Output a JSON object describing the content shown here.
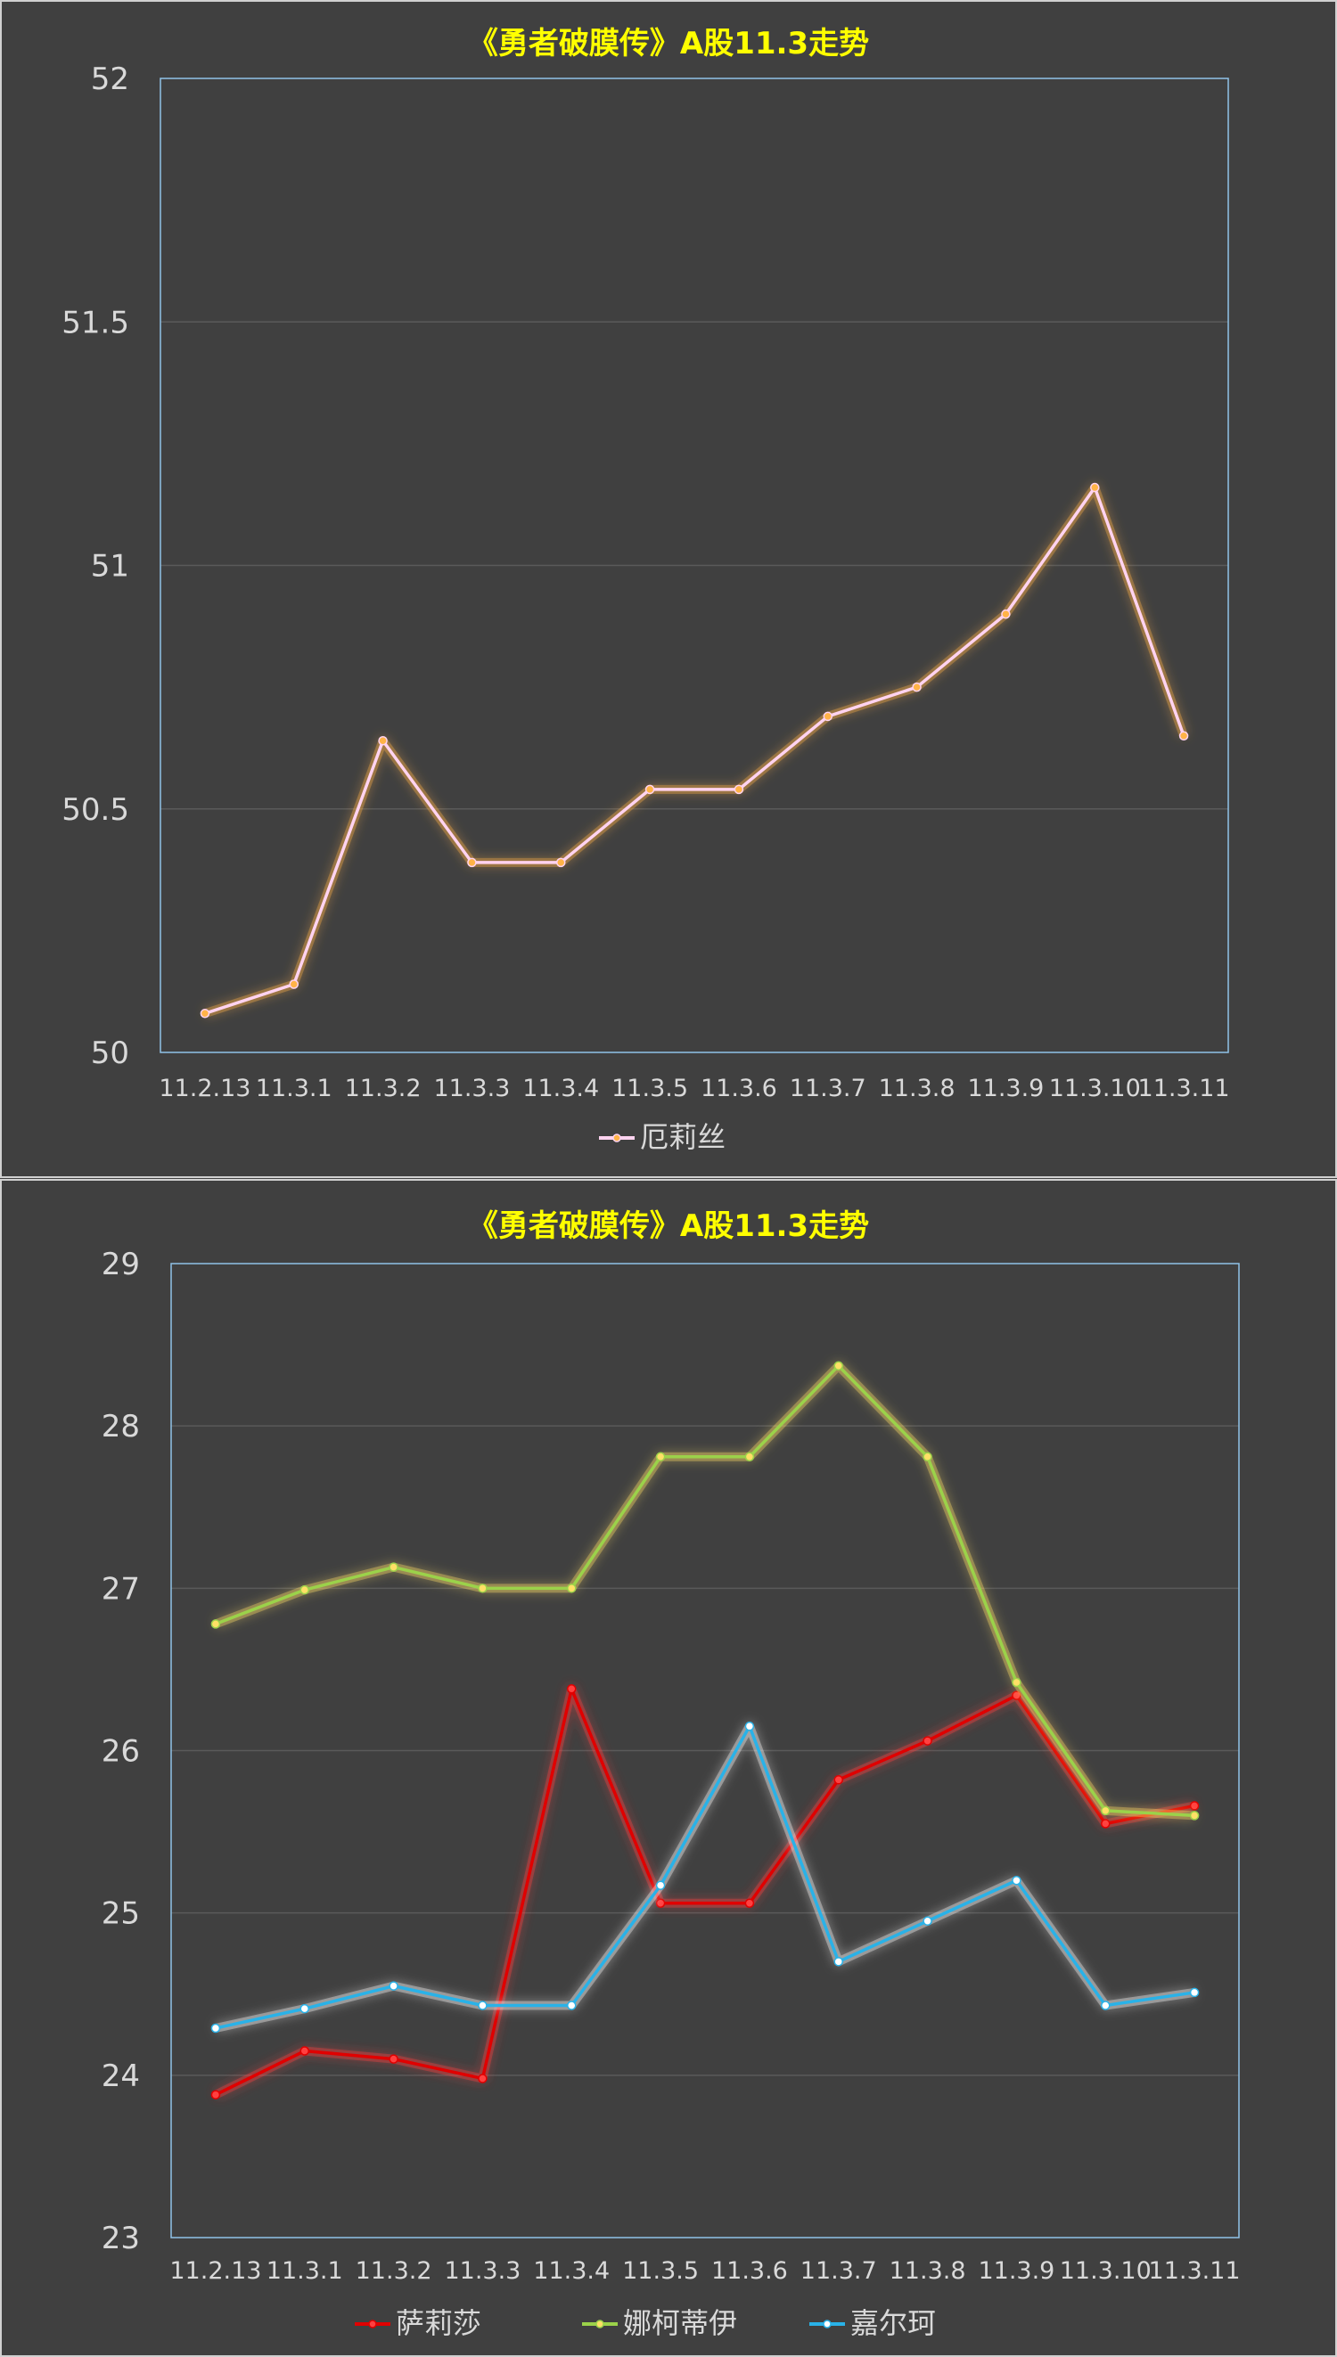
{
  "chart_data": [
    {
      "type": "line",
      "title": "《勇者破膜传》A股11.3走势",
      "categories": [
        "11.2.13",
        "11.3.1",
        "11.3.2",
        "11.3.3",
        "11.3.4",
        "11.3.5",
        "11.3.6",
        "11.3.7",
        "11.3.8",
        "11.3.9",
        "11.3.10",
        "11.3.11"
      ],
      "ylim": [
        50,
        52
      ],
      "yticks": [
        "50",
        "50.5",
        "51",
        "51.5",
        "52"
      ],
      "grid": true,
      "legend": "bottom",
      "series": [
        {
          "name": "厄莉丝",
          "color": "#ffd3f0",
          "glow": "#ffb347",
          "values": [
            50.08,
            50.14,
            50.64,
            50.39,
            50.39,
            50.54,
            50.54,
            50.69,
            50.75,
            50.9,
            51.16,
            50.65
          ]
        }
      ]
    },
    {
      "type": "line",
      "title": "《勇者破膜传》A股11.3走势",
      "categories": [
        "11.2.13",
        "11.3.1",
        "11.3.2",
        "11.3.3",
        "11.3.4",
        "11.3.5",
        "11.3.6",
        "11.3.7",
        "11.3.8",
        "11.3.9",
        "11.3.10",
        "11.3.11"
      ],
      "ylim": [
        23,
        29
      ],
      "yticks": [
        "23",
        "24",
        "25",
        "26",
        "27",
        "28",
        "29"
      ],
      "grid": true,
      "legend": "bottom",
      "series": [
        {
          "name": "萨莉莎",
          "color": "#e00000",
          "glow": "#ff4040",
          "values": [
            23.88,
            24.15,
            24.1,
            23.98,
            26.38,
            25.06,
            25.06,
            25.82,
            26.06,
            26.34,
            25.55,
            25.66
          ]
        },
        {
          "name": "娜柯蒂伊",
          "color": "#9bd24a",
          "glow": "#ffe066",
          "values": [
            26.78,
            26.99,
            27.13,
            27.0,
            27.0,
            27.81,
            27.81,
            28.37,
            27.81,
            26.42,
            25.63,
            25.6
          ]
        },
        {
          "name": "嘉尔珂",
          "color": "#29b2e8",
          "glow": "#ffffff",
          "values": [
            24.29,
            24.41,
            24.55,
            24.43,
            24.43,
            25.17,
            26.15,
            24.7,
            24.95,
            25.2,
            24.43,
            24.51
          ]
        }
      ]
    }
  ]
}
